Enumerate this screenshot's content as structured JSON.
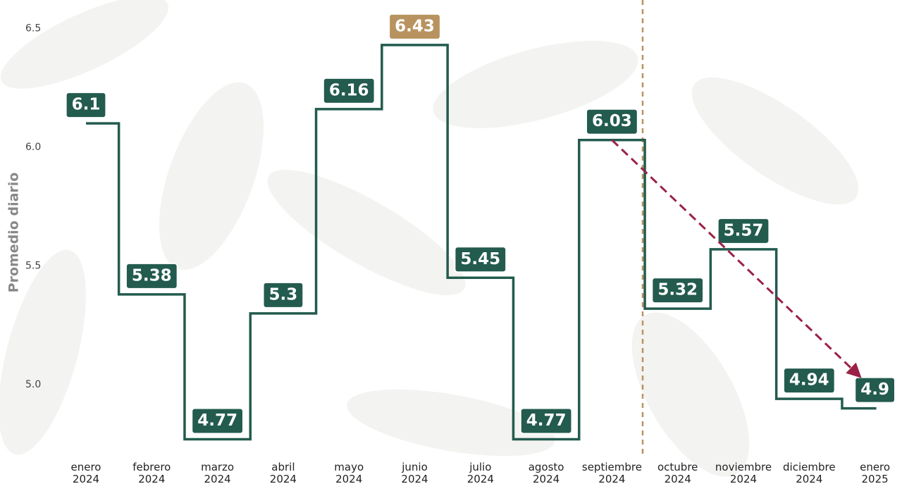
{
  "chart_data": {
    "type": "step",
    "y_label": "Promedio diario",
    "categories": [
      "enero 2024",
      "febrero 2024",
      "marzo 2024",
      "abril 2024",
      "mayo 2024",
      "junio 2024",
      "julio 2024",
      "agosto 2024",
      "septiembre 2024",
      "octubre 2024",
      "noviembre 2024",
      "diciembre 2024",
      "enero 2025"
    ],
    "values": [
      6.1,
      5.38,
      4.77,
      5.3,
      6.16,
      6.43,
      5.45,
      4.77,
      6.03,
      5.32,
      5.57,
      4.94,
      4.9
    ],
    "color": "#235b4e",
    "highlight": {
      "index": 5,
      "color": "#b8935f"
    },
    "ylim": [
      4.6,
      6.6
    ],
    "yticks": [
      {
        "value": 5,
        "label": "5.0"
      },
      5.5,
      {
        "value": 6,
        "label": "6.0"
      },
      6.5
    ]
  }
}
